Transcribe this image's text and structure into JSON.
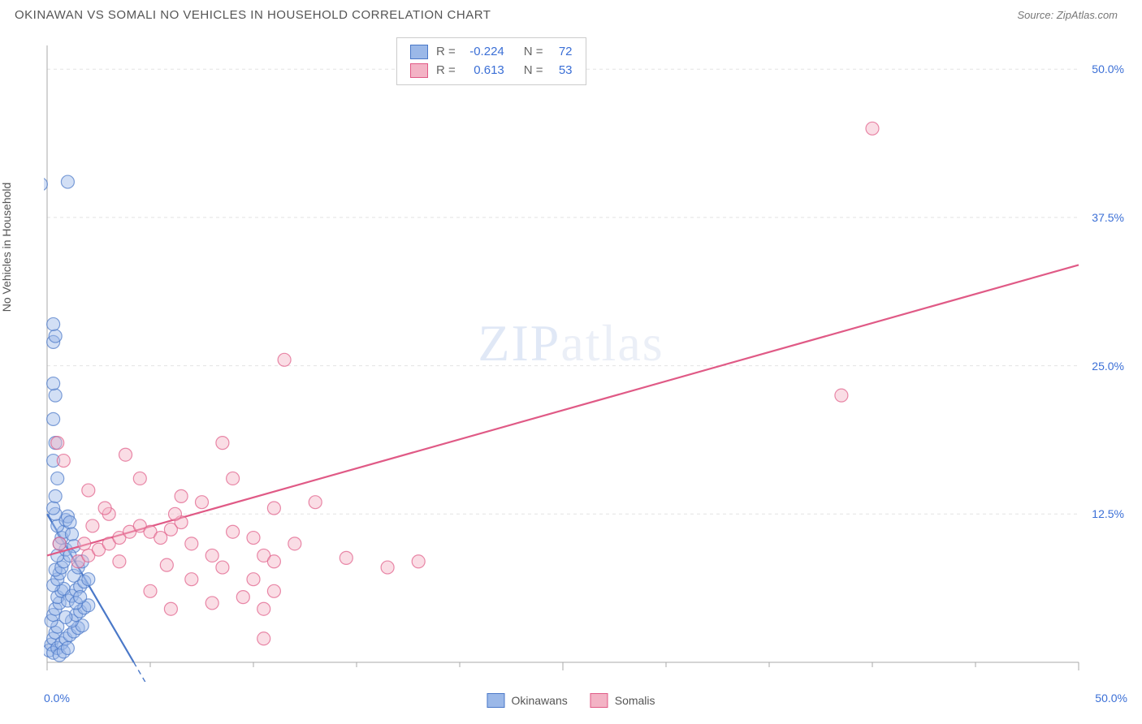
{
  "header": {
    "title": "OKINAWAN VS SOMALI NO VEHICLES IN HOUSEHOLD CORRELATION CHART",
    "source": "Source: ZipAtlas.com"
  },
  "watermark": {
    "left": "ZIP",
    "right": "atlas"
  },
  "chart": {
    "type": "scatter",
    "ylabel": "No Vehicles in Household",
    "background_color": "#ffffff",
    "grid_color": "#e4e4e4",
    "axis_color": "#aaaaaa",
    "xlim": [
      0,
      50
    ],
    "ylim": [
      0,
      52
    ],
    "xticks_major": [
      0,
      25,
      50
    ],
    "xticks_minor": [
      5,
      10,
      15,
      20,
      30,
      35,
      40,
      45
    ],
    "yticks": [
      12.5,
      25.0,
      37.5,
      50.0
    ],
    "xlabels": {
      "min": "0.0%",
      "max": "50.0%"
    },
    "ylabels": [
      "12.5%",
      "25.0%",
      "37.5%",
      "50.0%"
    ],
    "tick_label_color": "#3b6fd6",
    "tick_label_fontsize": 14,
    "point_radius": 8,
    "point_opacity": 0.45,
    "point_stroke_width": 1.2,
    "series": [
      {
        "name": "Okinawans",
        "fill_color": "#9bb8e8",
        "stroke_color": "#4a78c8",
        "R": "-0.224",
        "N": "72",
        "trend": {
          "x1": 0,
          "y1": 12.5,
          "x2": 4.2,
          "y2": 0,
          "dash": false,
          "width": 2.2,
          "extend_dash": true
        },
        "points": [
          [
            0.1,
            1.0
          ],
          [
            0.2,
            1.5
          ],
          [
            0.3,
            2.0
          ],
          [
            0.4,
            2.5
          ],
          [
            0.5,
            3.0
          ],
          [
            0.2,
            3.5
          ],
          [
            0.3,
            4.0
          ],
          [
            0.4,
            4.5
          ],
          [
            0.6,
            5.0
          ],
          [
            0.5,
            5.5
          ],
          [
            0.7,
            6.0
          ],
          [
            0.8,
            6.2
          ],
          [
            0.3,
            6.5
          ],
          [
            0.5,
            7.0
          ],
          [
            0.6,
            7.5
          ],
          [
            0.4,
            7.8
          ],
          [
            0.7,
            8.0
          ],
          [
            0.8,
            8.5
          ],
          [
            0.5,
            9.0
          ],
          [
            0.9,
            9.5
          ],
          [
            0.6,
            10.0
          ],
          [
            0.7,
            10.5
          ],
          [
            0.8,
            11.0
          ],
          [
            0.5,
            11.5
          ],
          [
            0.9,
            12.0
          ],
          [
            1.0,
            12.3
          ],
          [
            0.4,
            12.5
          ],
          [
            1.1,
            11.8
          ],
          [
            1.2,
            10.8
          ],
          [
            1.3,
            9.8
          ],
          [
            0.3,
            0.8
          ],
          [
            0.5,
            1.2
          ],
          [
            0.7,
            1.6
          ],
          [
            0.9,
            2.0
          ],
          [
            1.1,
            2.3
          ],
          [
            1.3,
            2.6
          ],
          [
            1.5,
            2.9
          ],
          [
            1.7,
            3.1
          ],
          [
            1.2,
            3.5
          ],
          [
            1.4,
            4.0
          ],
          [
            1.6,
            4.3
          ],
          [
            1.8,
            4.6
          ],
          [
            2.0,
            4.8
          ],
          [
            1.0,
            5.2
          ],
          [
            1.2,
            5.6
          ],
          [
            1.4,
            6.1
          ],
          [
            1.6,
            6.4
          ],
          [
            1.8,
            6.8
          ],
          [
            2.0,
            7.0
          ],
          [
            0.6,
            0.6
          ],
          [
            0.8,
            0.9
          ],
          [
            1.0,
            1.2
          ],
          [
            0.3,
            13.0
          ],
          [
            0.4,
            14.0
          ],
          [
            0.5,
            15.5
          ],
          [
            0.3,
            17.0
          ],
          [
            0.4,
            18.5
          ],
          [
            0.3,
            20.5
          ],
          [
            0.4,
            22.5
          ],
          [
            0.3,
            23.5
          ],
          [
            0.3,
            27.0
          ],
          [
            0.4,
            27.5
          ],
          [
            0.3,
            28.5
          ],
          [
            -0.3,
            40.3
          ],
          [
            1.0,
            40.5
          ],
          [
            1.3,
            7.3
          ],
          [
            1.5,
            8.0
          ],
          [
            1.7,
            8.5
          ],
          [
            1.1,
            9.0
          ],
          [
            0.9,
            3.8
          ],
          [
            1.4,
            5.0
          ],
          [
            1.6,
            5.5
          ]
        ]
      },
      {
        "name": "Somalis",
        "fill_color": "#f3b3c5",
        "stroke_color": "#e05a86",
        "R": "0.613",
        "N": "53",
        "trend": {
          "x1": 0,
          "y1": 9.0,
          "x2": 50,
          "y2": 33.5,
          "dash": false,
          "width": 2.2
        },
        "points": [
          [
            1.5,
            8.5
          ],
          [
            2.0,
            9.0
          ],
          [
            2.5,
            9.5
          ],
          [
            3.0,
            10.0
          ],
          [
            3.0,
            12.5
          ],
          [
            3.5,
            10.5
          ],
          [
            4.0,
            11.0
          ],
          [
            4.5,
            11.5
          ],
          [
            4.5,
            15.5
          ],
          [
            5.0,
            11.0
          ],
          [
            5.0,
            6.0
          ],
          [
            5.5,
            10.5
          ],
          [
            6.0,
            11.2
          ],
          [
            6.0,
            4.5
          ],
          [
            6.5,
            11.8
          ],
          [
            6.5,
            14.0
          ],
          [
            7.0,
            7.0
          ],
          [
            7.0,
            10.0
          ],
          [
            7.5,
            13.5
          ],
          [
            8.0,
            5.0
          ],
          [
            8.0,
            9.0
          ],
          [
            8.5,
            8.0
          ],
          [
            8.5,
            18.5
          ],
          [
            9.0,
            11.0
          ],
          [
            9.0,
            15.5
          ],
          [
            9.5,
            5.5
          ],
          [
            10.0,
            7.0
          ],
          [
            10.0,
            10.5
          ],
          [
            10.5,
            9.0
          ],
          [
            10.5,
            4.5
          ],
          [
            10.5,
            2.0
          ],
          [
            11.0,
            6.0
          ],
          [
            11.0,
            8.5
          ],
          [
            11.0,
            13.0
          ],
          [
            11.5,
            25.5
          ],
          [
            12.0,
            10.0
          ],
          [
            13.0,
            13.5
          ],
          [
            14.5,
            8.8
          ],
          [
            16.5,
            8.0
          ],
          [
            18.0,
            8.5
          ],
          [
            0.8,
            17.0
          ],
          [
            0.5,
            18.5
          ],
          [
            0.6,
            10.0
          ],
          [
            2.2,
            11.5
          ],
          [
            3.8,
            17.5
          ],
          [
            6.2,
            12.5
          ],
          [
            2.0,
            14.5
          ],
          [
            2.8,
            13.0
          ],
          [
            1.8,
            10.0
          ],
          [
            3.5,
            8.5
          ],
          [
            38.5,
            22.5
          ],
          [
            40.0,
            45.0
          ],
          [
            5.8,
            8.2
          ]
        ]
      }
    ],
    "stats_legend": {
      "border_color": "#cccccc",
      "text_color": "#666666",
      "value_color": "#3b6fd6",
      "fontsize": 15
    }
  }
}
